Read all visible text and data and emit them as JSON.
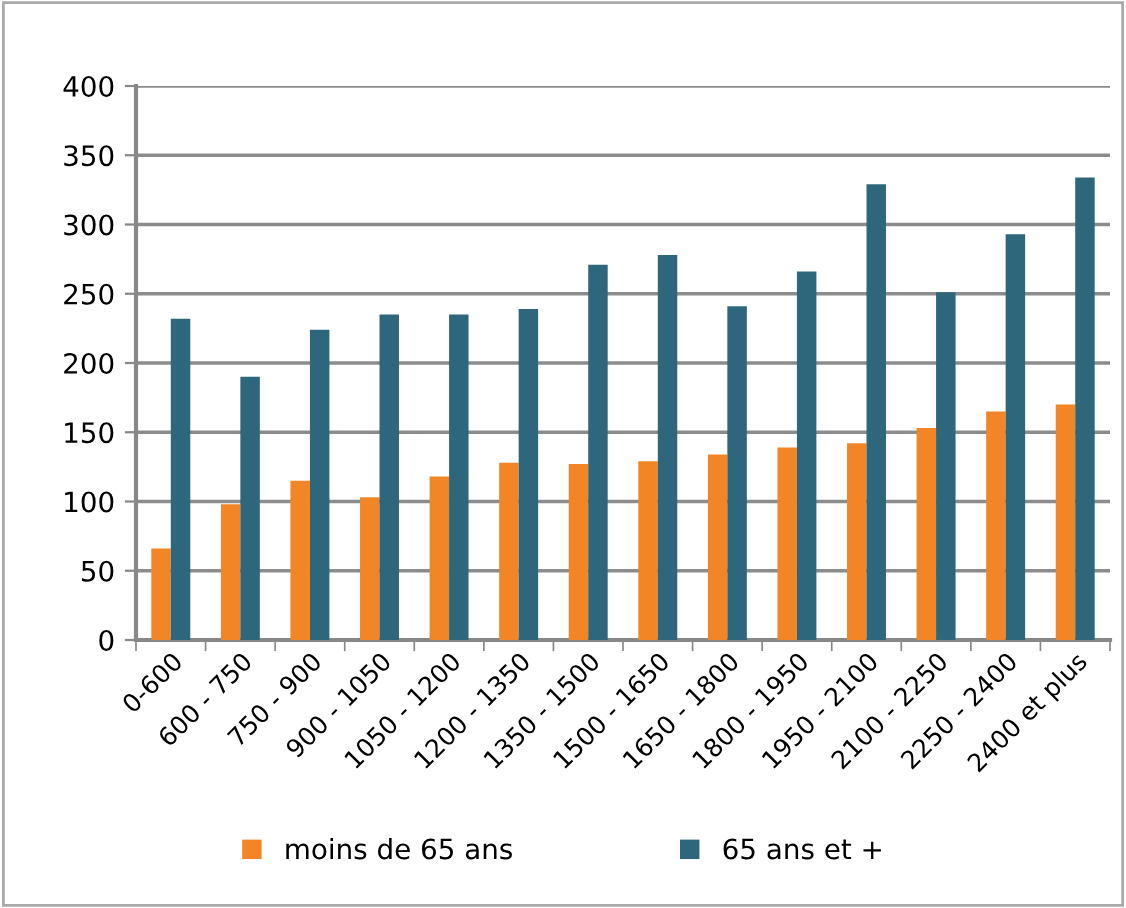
{
  "chart_data": {
    "type": "bar",
    "categories": [
      "0-600",
      "600 - 750",
      "750 - 900",
      "900 - 1050",
      "1050 - 1200",
      "1200 - 1350",
      "1350 - 1500",
      "1500 - 1650",
      "1650 - 1800",
      "1800 - 1950",
      "1950 - 2100",
      "2100 - 2250",
      "2250 - 2400",
      "2400 et plus"
    ],
    "series": [
      {
        "name": "moins de 65 ans",
        "color": "#f28627",
        "values": [
          66,
          98,
          115,
          103,
          118,
          128,
          127,
          129,
          134,
          139,
          142,
          153,
          165,
          170
        ]
      },
      {
        "name": "65 ans et +",
        "color": "#2e677c",
        "values": [
          232,
          190,
          224,
          235,
          235,
          239,
          271,
          278,
          241,
          266,
          329,
          251,
          293,
          334
        ]
      }
    ],
    "ylim": [
      0,
      400
    ],
    "yticks": [
      0,
      50,
      100,
      150,
      200,
      250,
      300,
      350,
      400
    ],
    "grid": "y",
    "legend": "bottom"
  }
}
